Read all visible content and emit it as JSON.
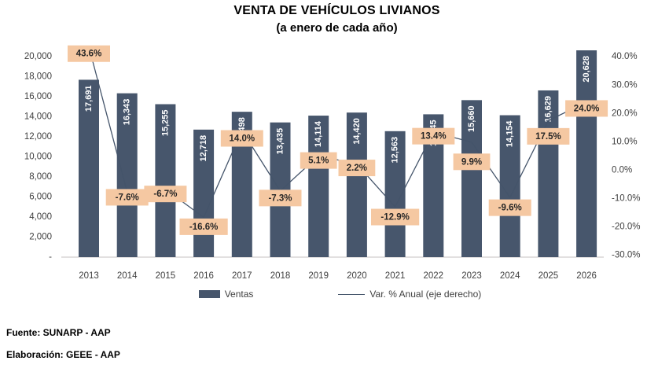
{
  "title": "VENTA DE VEHÍCULOS LIVIANOS",
  "subtitle": "(a enero de cada año)",
  "legend": {
    "bars_label": "Ventas",
    "line_label": "Var. % Anual (eje derecho)"
  },
  "footer": {
    "source": "Fuente: SUNARP - AAP",
    "elaboration": "Elaboración: GEEE - AAP"
  },
  "colors": {
    "bar": "#47566C",
    "line": "#44546A",
    "label_bg": "#F5C8A2",
    "label_text": "#262626",
    "axis_text": "#3F3F3F",
    "bar_value_text": "#FFFFFF",
    "baseline": "#D0CECE"
  },
  "chart_data": {
    "type": "bar",
    "title": "VENTA DE VEHÍCULOS LIVIANOS (a enero de cada año)",
    "categories": [
      "2013",
      "2014",
      "2015",
      "2016",
      "2017",
      "2018",
      "2019",
      "2020",
      "2021",
      "2022",
      "2023",
      "2024",
      "2025",
      "2026"
    ],
    "series": [
      {
        "name": "Ventas",
        "type": "bar",
        "axis": "left",
        "values": [
          17691,
          16343,
          15255,
          12718,
          14498,
          13435,
          14114,
          14420,
          12563,
          14245,
          15660,
          14154,
          16629,
          20628
        ],
        "labels": [
          "17,691",
          "16,343",
          "15,255",
          "12,718",
          "14,498",
          "13,435",
          "14,114",
          "14,420",
          "12,563",
          "14,245",
          "15,660",
          "14,154",
          "16,629",
          "20,628"
        ]
      },
      {
        "name": "Var. % Anual (eje derecho)",
        "type": "line",
        "axis": "right",
        "values": [
          43.6,
          -7.6,
          -6.7,
          -16.6,
          14.0,
          -7.3,
          5.1,
          2.2,
          -12.9,
          13.4,
          9.9,
          -9.6,
          17.5,
          24.0
        ],
        "labels": [
          "43.6%",
          "-7.6%",
          "-6.7%",
          "-16.6%",
          "14.0%",
          "-7.3%",
          "5.1%",
          "2.2%",
          "-12.9%",
          "13.4%",
          "9.9%",
          "-9.6%",
          "17.5%",
          "24.0%"
        ]
      }
    ],
    "left_axis": {
      "min": 0,
      "max": 20000,
      "tick_labels": [
        "20,000",
        "18,000",
        "16,000",
        "14,000",
        "12,000",
        "10,000",
        "8,000",
        "6,000",
        "4,000",
        "2,000",
        "-"
      ],
      "tick_values": [
        20000,
        18000,
        16000,
        14000,
        12000,
        10000,
        8000,
        6000,
        4000,
        2000,
        0
      ]
    },
    "right_axis": {
      "min": -30,
      "max": 40,
      "tick_labels": [
        "40.0%",
        "30.0%",
        "20.0%",
        "10.0%",
        "0.0%",
        "-10.0%",
        "-20.0%",
        "-30.0%"
      ],
      "tick_values": [
        40,
        30,
        20,
        10,
        0,
        -10,
        -20,
        -30
      ]
    },
    "grid": false,
    "legend_position": "bottom"
  }
}
